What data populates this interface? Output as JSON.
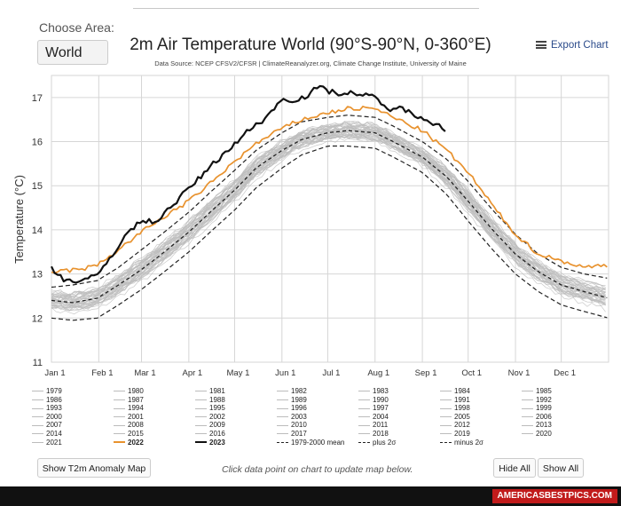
{
  "area": {
    "label": "Choose Area:",
    "selected": "World"
  },
  "export_label": "Export Chart",
  "buttons": {
    "anomaly": "Show T2m Anomaly Map",
    "hide_all": "Hide All",
    "show_all": "Show All"
  },
  "hint": "Click data point on chart to update map below.",
  "footer_brand": "AMERICASBESTPICS.COM",
  "colors": {
    "y2023": "#111111",
    "y2022": "#e8922e",
    "other_years": "#bdbdbd",
    "mean": "#222222",
    "grid": "#d6d6d6"
  },
  "chart_data": {
    "type": "line",
    "title": "2m Air Temperature World (90°S-90°N, 0-360°E)",
    "subtitle": "Data Source: NCEP CFSV2/CFSR | ClimateReanalyzer.org, Climate Change Institute, University of Maine",
    "ylabel": "Temperature (°C)",
    "xlabel": "",
    "ylim": [
      11,
      17.5
    ],
    "yticks": [
      11,
      12,
      13,
      14,
      15,
      16,
      17
    ],
    "xlim": [
      1,
      366
    ],
    "xticks": [
      {
        "label": "Jan 1",
        "day": 1
      },
      {
        "label": "Feb 1",
        "day": 32
      },
      {
        "label": "Mar 1",
        "day": 60
      },
      {
        "label": "Apr 1",
        "day": 91
      },
      {
        "label": "May 1",
        "day": 121
      },
      {
        "label": "Jun 1",
        "day": 152
      },
      {
        "label": "Jul 1",
        "day": 182
      },
      {
        "label": "Aug 1",
        "day": 213
      },
      {
        "label": "Sep 1",
        "day": 244
      },
      {
        "label": "Oct 1",
        "day": 274
      },
      {
        "label": "Nov 1",
        "day": 305
      },
      {
        "label": "Dec 1",
        "day": 335
      }
    ],
    "grid": true,
    "legend_position": "bottom",
    "legend": [
      "1979",
      "1980",
      "1981",
      "1982",
      "1983",
      "1984",
      "1985",
      "1986",
      "1987",
      "1988",
      "1989",
      "1990",
      "1991",
      "1992",
      "1993",
      "1994",
      "1995",
      "1996",
      "1997",
      "1998",
      "1999",
      "2000",
      "2001",
      "2002",
      "2003",
      "2004",
      "2005",
      "2006",
      "2007",
      "2008",
      "2009",
      "2010",
      "2011",
      "2012",
      "2013",
      "2014",
      "2015",
      "2016",
      "2017",
      "2018",
      "2019",
      "2020",
      "2021",
      "2022",
      "2023",
      "1979-2000 mean",
      "plus 2σ",
      "minus 2σ"
    ],
    "series": [
      {
        "name": "2023",
        "x": [
          1,
          10,
          20,
          31,
          40,
          50,
          60,
          70,
          80,
          90,
          100,
          110,
          121,
          130,
          140,
          152,
          160,
          170,
          175,
          182,
          190,
          200,
          205,
          213,
          220,
          230,
          240,
          245,
          250,
          255,
          260
        ],
        "y": [
          13.15,
          12.85,
          12.85,
          12.95,
          13.4,
          13.9,
          14.2,
          14.2,
          14.55,
          14.9,
          15.25,
          15.6,
          15.95,
          16.25,
          16.5,
          16.95,
          16.95,
          17.05,
          17.25,
          17.15,
          17.1,
          17.1,
          17.05,
          17.0,
          16.75,
          16.75,
          16.6,
          16.55,
          16.45,
          16.35,
          16.25
        ]
      },
      {
        "name": "2022",
        "x": [
          1,
          20,
          31,
          45,
          60,
          75,
          91,
          105,
          121,
          135,
          152,
          165,
          182,
          195,
          213,
          225,
          244,
          260,
          274,
          290,
          305,
          320,
          335,
          350,
          366
        ],
        "y": [
          13.05,
          13.1,
          13.2,
          13.55,
          13.95,
          14.3,
          14.65,
          15.05,
          15.55,
          15.95,
          16.3,
          16.5,
          16.65,
          16.75,
          16.75,
          16.55,
          16.25,
          15.8,
          15.3,
          14.55,
          13.9,
          13.45,
          13.3,
          13.15,
          13.2
        ]
      },
      {
        "name": "1979-2000 mean",
        "x": [
          1,
          15,
          31,
          45,
          60,
          75,
          91,
          105,
          121,
          135,
          152,
          165,
          182,
          195,
          213,
          225,
          244,
          260,
          274,
          290,
          305,
          320,
          335,
          350,
          366
        ],
        "y": [
          12.4,
          12.35,
          12.45,
          12.75,
          13.1,
          13.5,
          13.95,
          14.4,
          14.9,
          15.4,
          15.8,
          16.05,
          16.2,
          16.25,
          16.2,
          16.0,
          15.65,
          15.2,
          14.65,
          14.0,
          13.45,
          13.05,
          12.75,
          12.6,
          12.45
        ]
      },
      {
        "name": "plus 2σ",
        "x": [
          1,
          15,
          31,
          45,
          60,
          75,
          91,
          105,
          121,
          135,
          152,
          165,
          182,
          195,
          213,
          225,
          244,
          260,
          274,
          290,
          305,
          320,
          335,
          350,
          366
        ],
        "y": [
          12.7,
          12.75,
          12.85,
          13.15,
          13.55,
          13.95,
          14.4,
          14.85,
          15.35,
          15.8,
          16.2,
          16.45,
          16.55,
          16.6,
          16.55,
          16.35,
          16.0,
          15.6,
          15.1,
          14.45,
          13.9,
          13.45,
          13.15,
          13.0,
          12.9
        ]
      },
      {
        "name": "minus 2σ",
        "x": [
          1,
          15,
          31,
          45,
          60,
          75,
          91,
          105,
          121,
          135,
          152,
          165,
          182,
          195,
          213,
          225,
          244,
          260,
          274,
          290,
          305,
          320,
          335,
          350,
          366
        ],
        "y": [
          12.0,
          11.95,
          12.0,
          12.3,
          12.65,
          13.05,
          13.5,
          13.95,
          14.45,
          14.95,
          15.4,
          15.7,
          15.9,
          15.9,
          15.85,
          15.65,
          15.3,
          14.8,
          14.2,
          13.55,
          13.0,
          12.6,
          12.3,
          12.15,
          12.0
        ]
      }
    ]
  }
}
